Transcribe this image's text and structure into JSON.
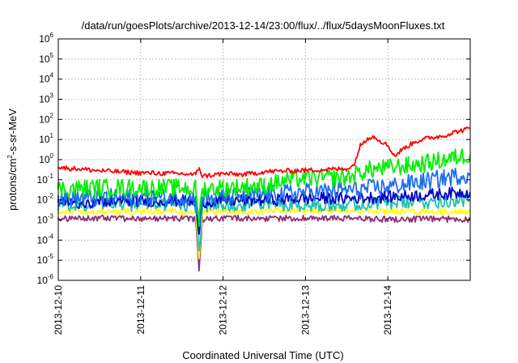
{
  "chart_data": {
    "type": "line",
    "title": "/data/run/goesPlots/archive/2013-12-14/23:00/flux/../flux/5daysMoonFluxes.txt",
    "xlabel": "Coordinated Universal Time (UTC)",
    "ylabel_parts": [
      "protons/cm",
      "2",
      "-s-sr-MeV"
    ],
    "yscale": "log",
    "ylim": [
      1e-06,
      1000000.0
    ],
    "xlim": [
      "2013-12-10",
      "2013-12-15"
    ],
    "y_ticks": [
      {
        "value": 1e-06,
        "base": "10",
        "exp": "-6"
      },
      {
        "value": 1e-05,
        "base": "10",
        "exp": "-5"
      },
      {
        "value": 0.0001,
        "base": "10",
        "exp": "-4"
      },
      {
        "value": 0.001,
        "base": "10",
        "exp": "-3"
      },
      {
        "value": 0.01,
        "base": "10",
        "exp": "-2"
      },
      {
        "value": 0.1,
        "base": "10",
        "exp": "-1"
      },
      {
        "value": 1,
        "base": "10",
        "exp": "0"
      },
      {
        "value": 10,
        "base": "10",
        "exp": "1"
      },
      {
        "value": 100,
        "base": "10",
        "exp": "2"
      },
      {
        "value": 1000,
        "base": "10",
        "exp": "3"
      },
      {
        "value": 10000,
        "base": "10",
        "exp": "4"
      },
      {
        "value": 100000,
        "base": "10",
        "exp": "5"
      },
      {
        "value": 1000000,
        "base": "10",
        "exp": "6"
      }
    ],
    "x_ticks": [
      "2013-12-10",
      "2013-12-11",
      "2013-12-12",
      "2013-12-13",
      "2013-12-14"
    ],
    "grid": true,
    "legend": "none",
    "series": [
      {
        "color": "#8e2f7a",
        "noise": 0.15,
        "points": [
          [
            "2013-12-10 00:00",
            0.0011
          ],
          [
            "2013-12-10 12:00",
            0.0012
          ],
          [
            "2013-12-11 00:00",
            0.0012
          ],
          [
            "2013-12-11 12:00",
            0.0012
          ],
          [
            "2013-12-11 16:00",
            0.0011
          ],
          [
            "2013-12-11 17:00",
            3e-06
          ],
          [
            "2013-12-11 18:00",
            0.0011
          ],
          [
            "2013-12-12 00:00",
            0.0012
          ],
          [
            "2013-12-12 12:00",
            0.0012
          ],
          [
            "2013-12-13 00:00",
            0.0012
          ],
          [
            "2013-12-13 12:00",
            0.0012
          ],
          [
            "2013-12-14 00:00",
            0.0011
          ],
          [
            "2013-12-14 12:00",
            0.0011
          ],
          [
            "2013-12-14 23:59",
            0.0011
          ]
        ]
      },
      {
        "color": "#ffff00",
        "noise": 0.15,
        "points": [
          [
            "2013-12-10 00:00",
            0.0028
          ],
          [
            "2013-12-10 12:00",
            0.0025
          ],
          [
            "2013-12-11 00:00",
            0.0026
          ],
          [
            "2013-12-11 12:00",
            0.0026
          ],
          [
            "2013-12-11 16:00",
            0.0024
          ],
          [
            "2013-12-11 17:00",
            1.2e-05
          ],
          [
            "2013-12-11 18:00",
            0.0025
          ],
          [
            "2013-12-12 00:00",
            0.0026
          ],
          [
            "2013-12-12 12:00",
            0.0027
          ],
          [
            "2013-12-13 00:00",
            0.0028
          ],
          [
            "2013-12-13 12:00",
            0.003
          ],
          [
            "2013-12-14 00:00",
            0.0027
          ],
          [
            "2013-12-14 12:00",
            0.0026
          ],
          [
            "2013-12-14 23:59",
            0.0026
          ]
        ]
      },
      {
        "color": "#20c0b0",
        "noise": 0.35,
        "points": [
          [
            "2013-12-10 00:00",
            0.005
          ],
          [
            "2013-12-10 12:00",
            0.006
          ],
          [
            "2013-12-11 00:00",
            0.006
          ],
          [
            "2013-12-11 12:00",
            0.006
          ],
          [
            "2013-12-11 16:00",
            0.005
          ],
          [
            "2013-12-11 17:00",
            3e-05
          ],
          [
            "2013-12-11 18:00",
            0.005
          ],
          [
            "2013-12-12 00:00",
            0.006
          ],
          [
            "2013-12-12 12:00",
            0.006
          ],
          [
            "2013-12-13 00:00",
            0.006
          ],
          [
            "2013-12-13 12:00",
            0.006
          ],
          [
            "2013-12-14 00:00",
            0.007
          ],
          [
            "2013-12-14 12:00",
            0.008
          ],
          [
            "2013-12-14 23:59",
            0.01
          ]
        ]
      },
      {
        "color": "#0000c8",
        "noise": 0.3,
        "points": [
          [
            "2013-12-10 00:00",
            0.007
          ],
          [
            "2013-12-10 12:00",
            0.008
          ],
          [
            "2013-12-11 00:00",
            0.009
          ],
          [
            "2013-12-11 12:00",
            0.009
          ],
          [
            "2013-12-11 16:00",
            0.008
          ],
          [
            "2013-12-11 17:00",
            0.0002
          ],
          [
            "2013-12-11 18:00",
            0.008
          ],
          [
            "2013-12-12 00:00",
            0.009
          ],
          [
            "2013-12-12 12:00",
            0.01
          ],
          [
            "2013-12-13 00:00",
            0.012
          ],
          [
            "2013-12-13 12:00",
            0.012
          ],
          [
            "2013-12-14 00:00",
            0.014
          ],
          [
            "2013-12-14 12:00",
            0.018
          ],
          [
            "2013-12-14 23:59",
            0.025
          ]
        ]
      },
      {
        "color": "#1e6ef0",
        "noise": 0.45,
        "points": [
          [
            "2013-12-10 00:00",
            0.012
          ],
          [
            "2013-12-10 12:00",
            0.013
          ],
          [
            "2013-12-11 00:00",
            0.013
          ],
          [
            "2013-12-11 12:00",
            0.013
          ],
          [
            "2013-12-11 16:00",
            0.012
          ],
          [
            "2013-12-11 17:00",
            0.0005
          ],
          [
            "2013-12-11 18:00",
            0.012
          ],
          [
            "2013-12-12 00:00",
            0.014
          ],
          [
            "2013-12-12 12:00",
            0.018
          ],
          [
            "2013-12-13 00:00",
            0.025
          ],
          [
            "2013-12-13 12:00",
            0.03
          ],
          [
            "2013-12-14 00:00",
            0.045
          ],
          [
            "2013-12-14 12:00",
            0.09
          ],
          [
            "2013-12-14 23:59",
            0.2
          ]
        ]
      },
      {
        "color": "#00f000",
        "noise": 0.45,
        "points": [
          [
            "2013-12-10 00:00",
            0.035
          ],
          [
            "2013-12-10 12:00",
            0.04
          ],
          [
            "2013-12-11 00:00",
            0.04
          ],
          [
            "2013-12-11 12:00",
            0.04
          ],
          [
            "2013-12-11 16:00",
            0.035
          ],
          [
            "2013-12-11 17:00",
            0.001
          ],
          [
            "2013-12-11 18:00",
            0.035
          ],
          [
            "2013-12-12 00:00",
            0.04
          ],
          [
            "2013-12-12 12:00",
            0.05
          ],
          [
            "2013-12-12 18:00",
            0.09
          ],
          [
            "2013-12-13 00:00",
            0.12
          ],
          [
            "2013-12-13 12:00",
            0.13
          ],
          [
            "2013-12-13 18:00",
            0.3
          ],
          [
            "2013-12-14 00:00",
            0.4
          ],
          [
            "2013-12-14 06:00",
            0.5
          ],
          [
            "2013-12-14 12:00",
            0.7
          ],
          [
            "2013-12-14 23:59",
            1.8
          ]
        ]
      },
      {
        "color": "#ff0000",
        "noise": 0.12,
        "points": [
          [
            "2013-12-10 00:00",
            0.4
          ],
          [
            "2013-12-10 06:00",
            0.35
          ],
          [
            "2013-12-10 12:00",
            0.28
          ],
          [
            "2013-12-11 00:00",
            0.22
          ],
          [
            "2013-12-11 12:00",
            0.2
          ],
          [
            "2013-12-11 16:00",
            0.18
          ],
          [
            "2013-12-11 17:00",
            0.4
          ],
          [
            "2013-12-11 18:00",
            0.15
          ],
          [
            "2013-12-12 00:00",
            0.2
          ],
          [
            "2013-12-12 06:00",
            0.18
          ],
          [
            "2013-12-12 12:00",
            0.25
          ],
          [
            "2013-12-13 00:00",
            0.3
          ],
          [
            "2013-12-13 12:00",
            0.35
          ],
          [
            "2013-12-13 14:00",
            0.5
          ],
          [
            "2013-12-13 16:00",
            5
          ],
          [
            "2013-12-13 18:00",
            12
          ],
          [
            "2013-12-13 20:00",
            14
          ],
          [
            "2013-12-14 00:00",
            5
          ],
          [
            "2013-12-14 02:00",
            1.5
          ],
          [
            "2013-12-14 04:00",
            3
          ],
          [
            "2013-12-14 08:00",
            8
          ],
          [
            "2013-12-14 12:00",
            12
          ],
          [
            "2013-12-14 16:00",
            15
          ],
          [
            "2013-12-14 20:00",
            25
          ],
          [
            "2013-12-14 23:59",
            35
          ]
        ]
      }
    ]
  }
}
